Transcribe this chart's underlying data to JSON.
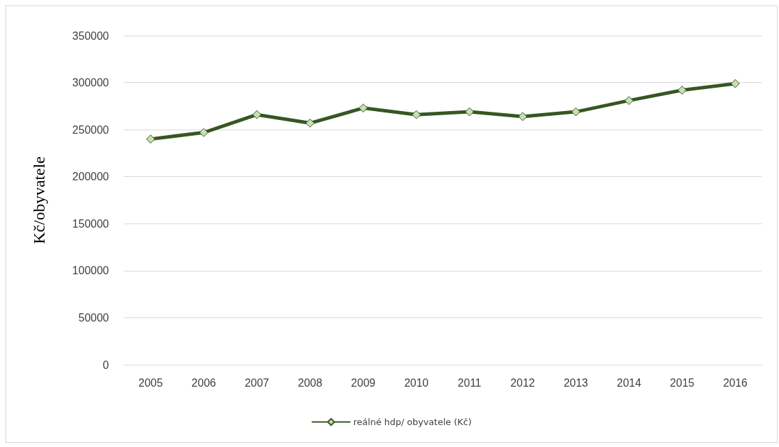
{
  "chart_data": {
    "type": "line",
    "ylabel": "Kč/obyvatele",
    "categories": [
      "2005",
      "2006",
      "2007",
      "2008",
      "2009",
      "2010",
      "2011",
      "2012",
      "2013",
      "2014",
      "2015",
      "2016"
    ],
    "series": [
      {
        "name": "reálné hdp/ obyvatele (Kč)",
        "color": "#375623",
        "values": [
          240000,
          247000,
          266000,
          257000,
          273000,
          266000,
          269000,
          264000,
          269000,
          281000,
          292000,
          299000
        ]
      }
    ],
    "ylim": [
      0,
      350000
    ],
    "yticks": [
      0,
      50000,
      100000,
      150000,
      200000,
      250000,
      300000,
      350000
    ],
    "grid": "y",
    "legend": "bottom",
    "marker": "diamond",
    "line_style": "solid"
  }
}
